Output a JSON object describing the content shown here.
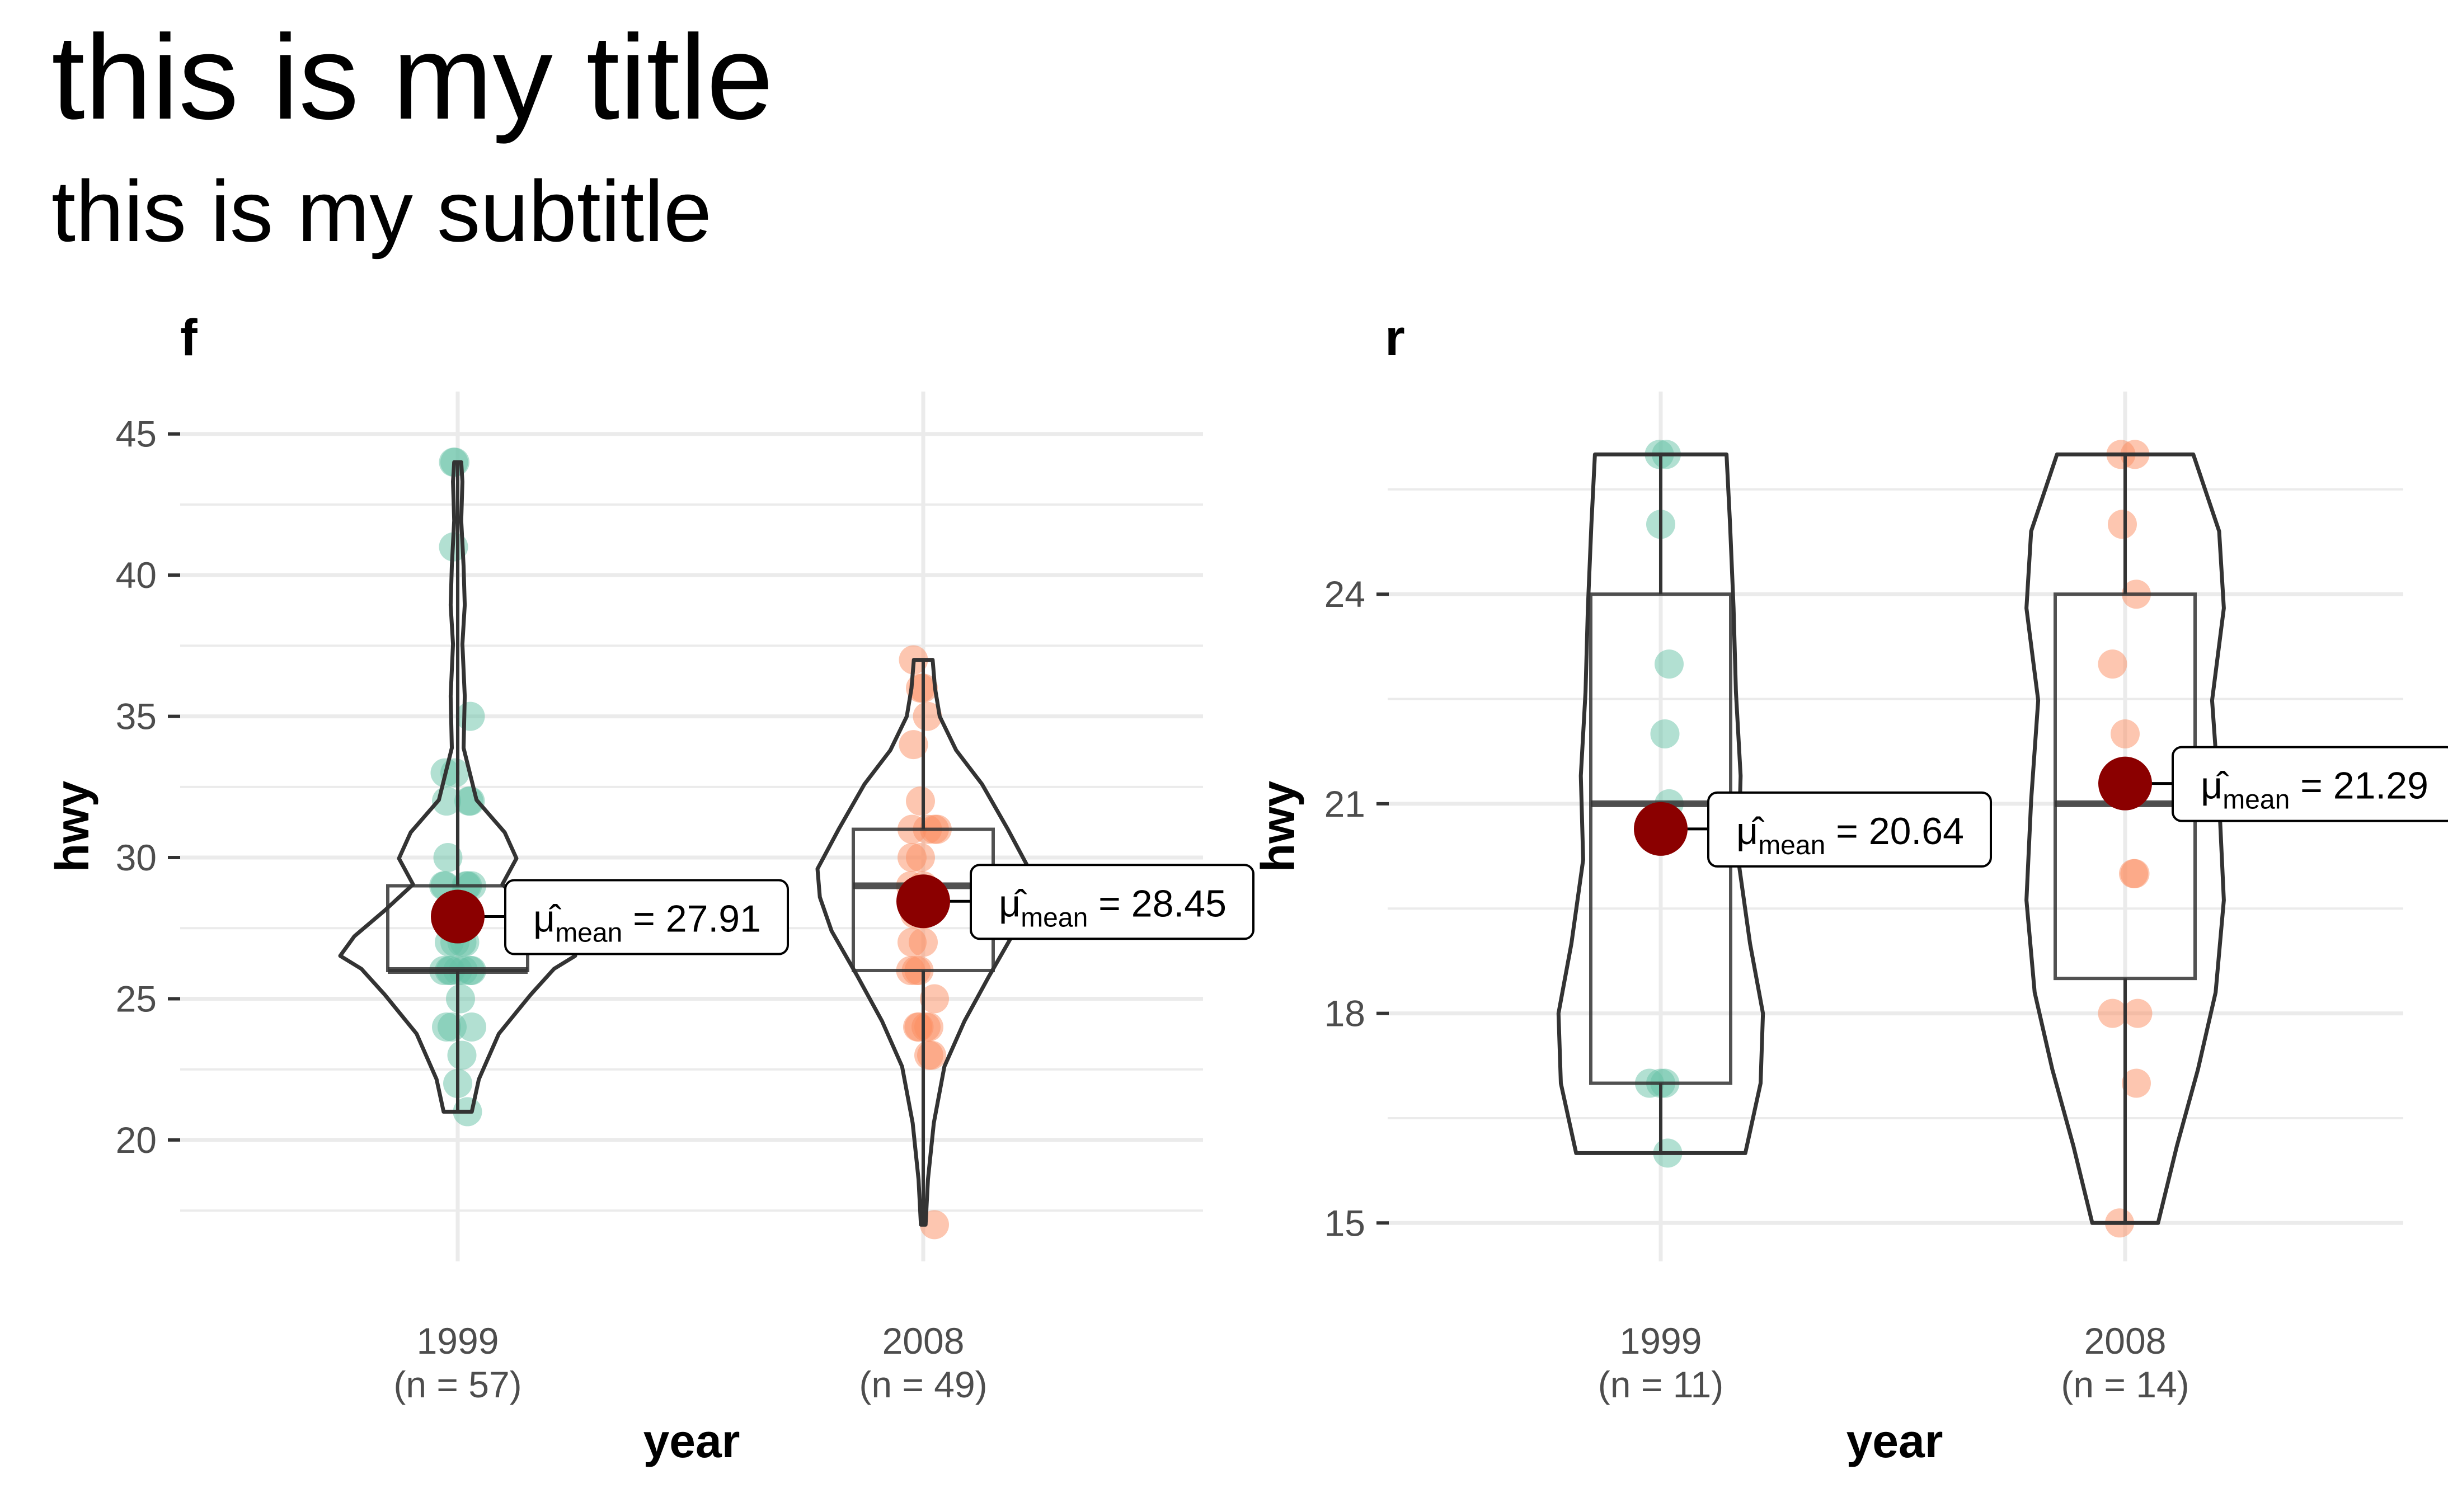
{
  "title": "this is my title",
  "subtitle": "this is my subtitle",
  "chart_data": [
    {
      "type": "violin-box-scatter",
      "panel": "f",
      "xlabel": "year",
      "ylabel": "hwy",
      "ylim": [
        15.7,
        46.5
      ],
      "yticks": [
        20,
        25,
        30,
        35,
        40,
        45
      ],
      "grid": true,
      "categories": [
        "1999",
        "2008"
      ],
      "category_counts": [
        "(n = 57)",
        "(n = 49)"
      ],
      "colors": [
        "#66c2a5",
        "#fc8d62"
      ],
      "mean_color": "#8b0000",
      "box": [
        {
          "q1": 26,
          "median": 26,
          "q3": 29,
          "wlo": 21,
          "whi": 44
        },
        {
          "q1": 26,
          "median": 29,
          "q3": 31,
          "wlo": 17,
          "whi": 37
        }
      ],
      "violin_range": [
        [
          21,
          44
        ],
        [
          17,
          37
        ]
      ],
      "violin_profile": [
        [
          [
            0.0,
            0.12
          ],
          [
            0.05,
            0.18
          ],
          [
            0.12,
            0.35
          ],
          [
            0.18,
            0.62
          ],
          [
            0.22,
            0.82
          ],
          [
            0.24,
            1.0
          ],
          [
            0.27,
            0.88
          ],
          [
            0.31,
            0.62
          ],
          [
            0.35,
            0.38
          ],
          [
            0.39,
            0.5
          ],
          [
            0.43,
            0.4
          ],
          [
            0.48,
            0.16
          ],
          [
            0.56,
            0.05
          ],
          [
            0.64,
            0.06
          ],
          [
            0.72,
            0.04
          ],
          [
            0.78,
            0.06
          ],
          [
            0.84,
            0.05
          ],
          [
            0.91,
            0.03
          ],
          [
            0.97,
            0.04
          ],
          [
            1.0,
            0.03
          ]
        ],
        [
          [
            0.0,
            0.02
          ],
          [
            0.08,
            0.04
          ],
          [
            0.18,
            0.09
          ],
          [
            0.28,
            0.18
          ],
          [
            0.36,
            0.35
          ],
          [
            0.44,
            0.56
          ],
          [
            0.52,
            0.78
          ],
          [
            0.58,
            0.88
          ],
          [
            0.63,
            0.9
          ],
          [
            0.7,
            0.72
          ],
          [
            0.78,
            0.5
          ],
          [
            0.84,
            0.28
          ],
          [
            0.9,
            0.14
          ],
          [
            0.95,
            0.1
          ],
          [
            1.0,
            0.08
          ]
        ]
      ],
      "means": [
        27.91,
        28.45
      ],
      "mean_labels": [
        "27.91",
        "28.45"
      ],
      "points": [
        [
          [
            -0.03,
            44
          ],
          [
            -0.02,
            44
          ],
          [
            -0.03,
            41
          ],
          [
            0.09,
            35
          ],
          [
            -0.09,
            33
          ],
          [
            -0.02,
            33
          ],
          [
            -0.08,
            32
          ],
          [
            0.09,
            32
          ],
          [
            0.08,
            32
          ],
          [
            -0.07,
            30
          ],
          [
            -0.09,
            29
          ],
          [
            0.06,
            29
          ],
          [
            0.1,
            29
          ],
          [
            0.07,
            29
          ],
          [
            -0.1,
            29
          ],
          [
            0.0,
            28
          ],
          [
            -0.06,
            27
          ],
          [
            0.03,
            27
          ],
          [
            -0.02,
            27
          ],
          [
            0.05,
            27
          ],
          [
            -0.1,
            26
          ],
          [
            -0.05,
            26
          ],
          [
            0.0,
            26
          ],
          [
            0.04,
            26
          ],
          [
            0.09,
            26
          ],
          [
            0.1,
            26
          ],
          [
            -0.06,
            26
          ],
          [
            0.02,
            25
          ],
          [
            -0.08,
            24
          ],
          [
            -0.04,
            24
          ],
          [
            0.1,
            24
          ],
          [
            0.03,
            23
          ],
          [
            0.0,
            22
          ],
          [
            0.07,
            21
          ]
        ],
        [
          [
            -0.07,
            37
          ],
          [
            -0.02,
            36
          ],
          [
            0.0,
            36
          ],
          [
            0.03,
            35
          ],
          [
            -0.07,
            34
          ],
          [
            -0.02,
            32
          ],
          [
            -0.08,
            31
          ],
          [
            0.03,
            31
          ],
          [
            0.08,
            31
          ],
          [
            0.1,
            31
          ],
          [
            -0.08,
            30
          ],
          [
            -0.02,
            30
          ],
          [
            -0.09,
            29
          ],
          [
            0.0,
            29
          ],
          [
            -0.06,
            28
          ],
          [
            0.01,
            28
          ],
          [
            -0.08,
            27
          ],
          [
            0.0,
            27
          ],
          [
            -0.09,
            26
          ],
          [
            -0.05,
            26
          ],
          [
            -0.03,
            26
          ],
          [
            0.08,
            25
          ],
          [
            -0.04,
            24
          ],
          [
            -0.03,
            24
          ],
          [
            0.02,
            24
          ],
          [
            0.04,
            24
          ],
          [
            0.04,
            23
          ],
          [
            0.06,
            23
          ],
          [
            0.08,
            17
          ]
        ]
      ]
    },
    {
      "type": "violin-box-scatter",
      "panel": "r",
      "xlabel": "year",
      "ylabel": "hwy",
      "ylim": [
        14.45,
        26.9
      ],
      "yticks": [
        15,
        18,
        21,
        24
      ],
      "grid": true,
      "categories": [
        "1999",
        "2008"
      ],
      "category_counts": [
        "(n = 11)",
        "(n = 14)"
      ],
      "colors": [
        "#66c2a5",
        "#fc8d62"
      ],
      "mean_color": "#8b0000",
      "box": [
        {
          "q1": 17,
          "median": 21,
          "q3": 24,
          "wlo": 16,
          "whi": 26
        },
        {
          "q1": 18.5,
          "median": 21,
          "q3": 24,
          "wlo": 15,
          "whi": 26
        }
      ],
      "violin_range": [
        [
          16,
          26
        ],
        [
          15,
          26
        ]
      ],
      "violin_profile": [
        [
          [
            0.0,
            0.72
          ],
          [
            0.1,
            0.85
          ],
          [
            0.2,
            0.87
          ],
          [
            0.3,
            0.76
          ],
          [
            0.42,
            0.66
          ],
          [
            0.54,
            0.68
          ],
          [
            0.66,
            0.64
          ],
          [
            0.78,
            0.62
          ],
          [
            0.9,
            0.59
          ],
          [
            1.0,
            0.56
          ]
        ],
        [
          [
            0.0,
            0.28
          ],
          [
            0.1,
            0.44
          ],
          [
            0.2,
            0.62
          ],
          [
            0.3,
            0.77
          ],
          [
            0.42,
            0.84
          ],
          [
            0.55,
            0.8
          ],
          [
            0.68,
            0.74
          ],
          [
            0.8,
            0.84
          ],
          [
            0.9,
            0.8
          ],
          [
            1.0,
            0.58
          ]
        ]
      ],
      "means": [
        20.64,
        21.29
      ],
      "mean_labels": [
        "20.64",
        "21.29"
      ],
      "points": [
        [
          [
            -0.01,
            26
          ],
          [
            0.04,
            26
          ],
          [
            0.0,
            25
          ],
          [
            0.06,
            23
          ],
          [
            0.03,
            22
          ],
          [
            0.06,
            21
          ],
          [
            -0.08,
            17
          ],
          [
            0.0,
            17
          ],
          [
            0.03,
            17
          ],
          [
            0.05,
            16
          ]
        ],
        [
          [
            -0.03,
            26
          ],
          [
            0.07,
            26
          ],
          [
            -0.02,
            25
          ],
          [
            0.08,
            24
          ],
          [
            -0.09,
            23
          ],
          [
            0.0,
            22
          ],
          [
            0.06,
            20
          ],
          [
            0.07,
            20
          ],
          [
            0.09,
            18
          ],
          [
            -0.09,
            18
          ],
          [
            0.08,
            17
          ],
          [
            -0.04,
            15
          ]
        ]
      ]
    }
  ]
}
